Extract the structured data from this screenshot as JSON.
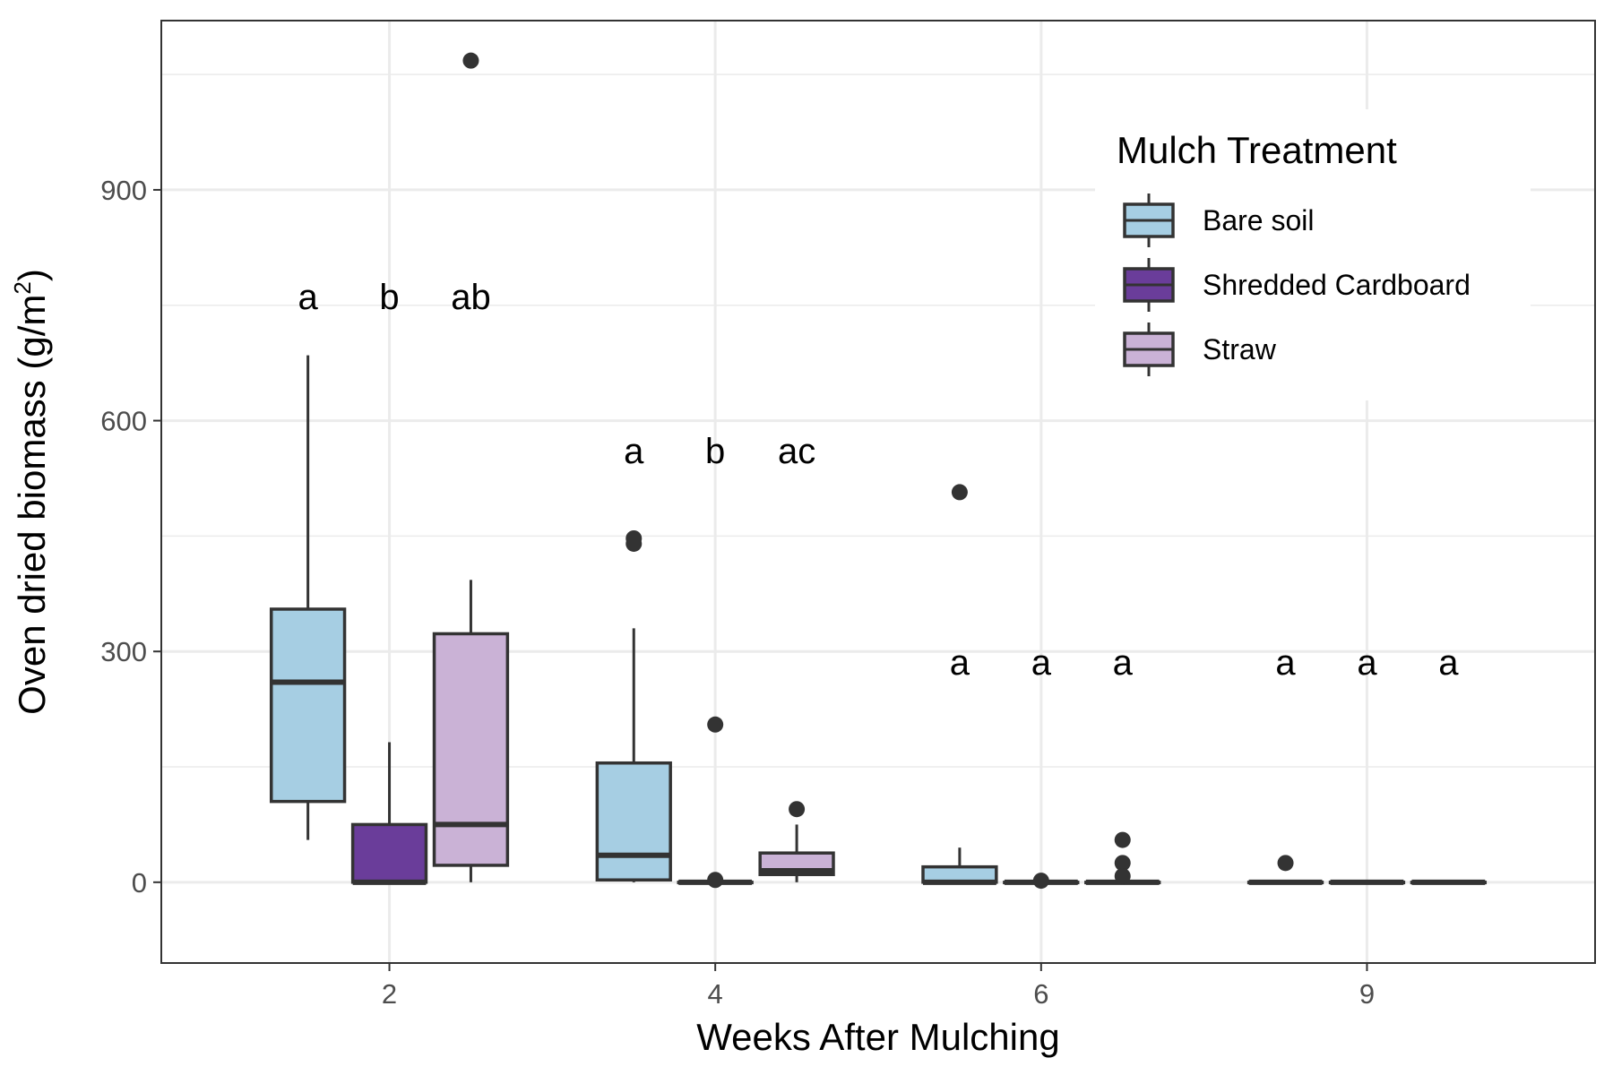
{
  "chart_data": {
    "type": "boxplot",
    "xlabel": "Weeks After Mulching",
    "ylabel": "Oven dried biomass  (g/m",
    "ylabel_sup": "2",
    "ylabel_close": ")",
    "ylim": [
      -105,
      1120
    ],
    "y_ticks": [
      0,
      300,
      600,
      900
    ],
    "categories": [
      "2",
      "4",
      "6",
      "9"
    ],
    "grid": true,
    "legend": {
      "title": "Mulch Treatment",
      "placement": "top-right",
      "entries": [
        "Bare soil",
        "Shredded Cardboard",
        "Straw"
      ]
    },
    "colors": {
      "Bare soil": "#a6cee3",
      "Shredded Cardboard": "#6a3d9a",
      "Straw": "#cab2d6",
      "outline": "#333333"
    },
    "series": [
      {
        "name": "Bare soil",
        "boxes": [
          {
            "whisker_low": 55,
            "q1": 105,
            "median": 260,
            "q3": 355,
            "whisker_high": 685,
            "outliers": []
          },
          {
            "whisker_low": 0,
            "q1": 3,
            "median": 35,
            "q3": 155,
            "whisker_high": 330,
            "outliers": [
              440,
              447
            ]
          },
          {
            "whisker_low": 0,
            "q1": 0,
            "median": 0,
            "q3": 20,
            "whisker_high": 45,
            "outliers": [
              507
            ]
          },
          {
            "whisker_low": 0,
            "q1": 0,
            "median": 0,
            "q3": 0,
            "whisker_high": 0,
            "outliers": [
              25
            ]
          }
        ]
      },
      {
        "name": "Shredded Cardboard",
        "boxes": [
          {
            "whisker_low": 0,
            "q1": 0,
            "median": 0,
            "q3": 75,
            "whisker_high": 182,
            "outliers": []
          },
          {
            "whisker_low": 0,
            "q1": 0,
            "median": 0,
            "q3": 0,
            "whisker_high": 0,
            "outliers": [
              205,
              3
            ]
          },
          {
            "whisker_low": 0,
            "q1": 0,
            "median": 0,
            "q3": 0,
            "whisker_high": 0,
            "outliers": [
              2
            ]
          },
          {
            "whisker_low": 0,
            "q1": 0,
            "median": 0,
            "q3": 0,
            "whisker_high": 0,
            "outliers": []
          }
        ]
      },
      {
        "name": "Straw",
        "boxes": [
          {
            "whisker_low": 0,
            "q1": 22,
            "median": 75,
            "q3": 323,
            "whisker_high": 393,
            "outliers": [
              1068
            ]
          },
          {
            "whisker_low": 0,
            "q1": 10,
            "median": 15,
            "q3": 38,
            "whisker_high": 75,
            "outliers": [
              95
            ]
          },
          {
            "whisker_low": 0,
            "q1": 0,
            "median": 0,
            "q3": 0,
            "whisker_high": 0,
            "outliers": [
              55,
              25,
              8
            ]
          },
          {
            "whisker_low": 0,
            "q1": 0,
            "median": 0,
            "q3": 0,
            "whisker_high": 0,
            "outliers": []
          }
        ]
      }
    ],
    "annotations": [
      {
        "category": "2",
        "series": "Bare soil",
        "text": "a",
        "y": 745
      },
      {
        "category": "2",
        "series": "Shredded Cardboard",
        "text": "b",
        "y": 745
      },
      {
        "category": "2",
        "series": "Straw",
        "text": "ab",
        "y": 745
      },
      {
        "category": "4",
        "series": "Bare soil",
        "text": "a",
        "y": 545
      },
      {
        "category": "4",
        "series": "Shredded Cardboard",
        "text": "b",
        "y": 545
      },
      {
        "category": "4",
        "series": "Straw",
        "text": "ac",
        "y": 545
      },
      {
        "category": "6",
        "series": "Bare soil",
        "text": "a",
        "y": 270
      },
      {
        "category": "6",
        "series": "Shredded Cardboard",
        "text": "a",
        "y": 270
      },
      {
        "category": "6",
        "series": "Straw",
        "text": "a",
        "y": 270
      },
      {
        "category": "9",
        "series": "Bare soil",
        "text": "a",
        "y": 270
      },
      {
        "category": "9",
        "series": "Shredded Cardboard",
        "text": "a",
        "y": 270
      },
      {
        "category": "9",
        "series": "Straw",
        "text": "a",
        "y": 270
      }
    ]
  }
}
